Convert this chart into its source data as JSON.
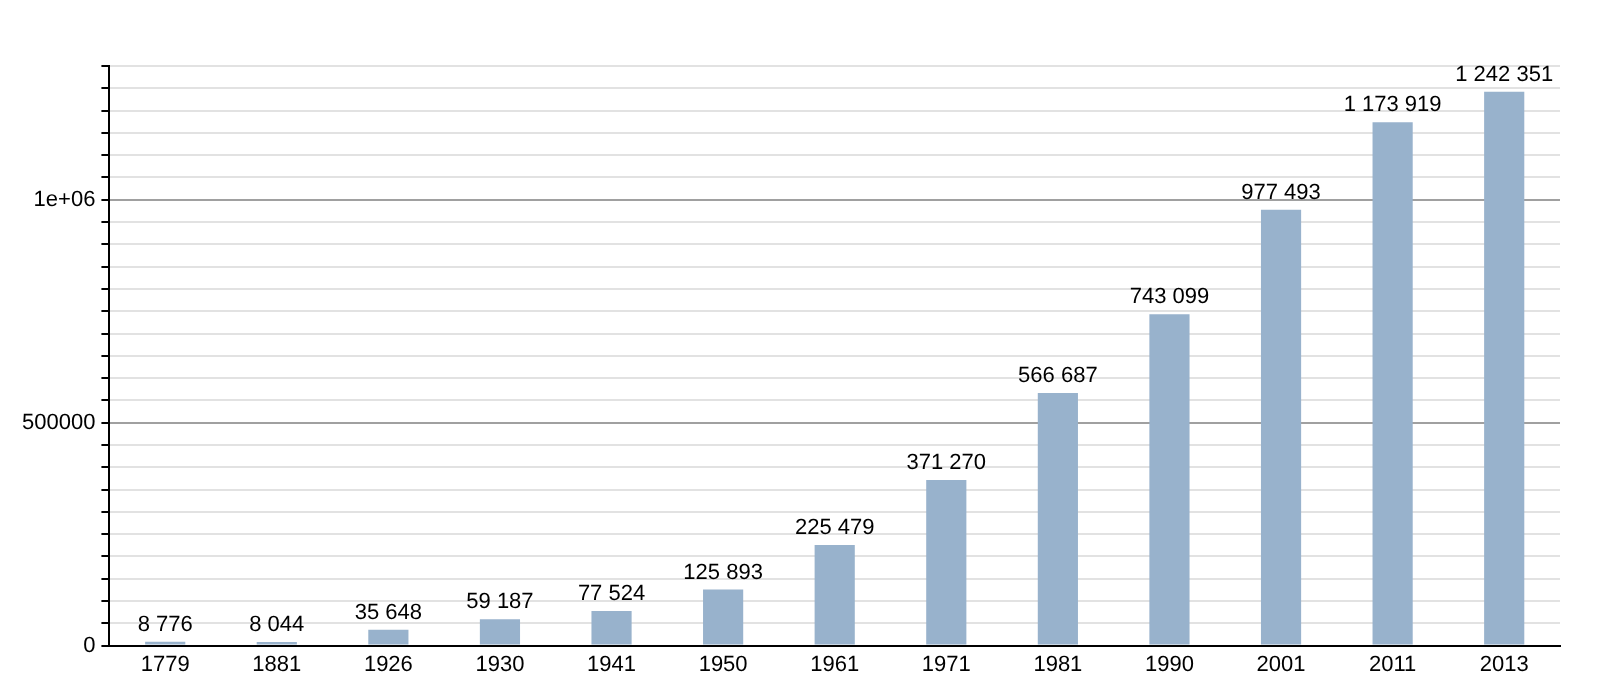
{
  "chart_data": {
    "type": "bar",
    "categories": [
      "1779",
      "1881",
      "1926",
      "1930",
      "1941",
      "1950",
      "1961",
      "1971",
      "1981",
      "1990",
      "2001",
      "2011",
      "2013"
    ],
    "values": [
      8776,
      8044,
      35648,
      59187,
      77524,
      125893,
      225479,
      371270,
      566687,
      743099,
      977493,
      1173919,
      1242351
    ],
    "value_labels": [
      "8 776",
      "8 044",
      "35 648",
      "59 187",
      "77 524",
      "125 893",
      "225 479",
      "371 270",
      "566 687",
      "743 099",
      "977 493",
      "1 173 919",
      "1 242 351"
    ],
    "color": "#98b2cc",
    "ylim": [
      0,
      1300000
    ],
    "yticks": [
      0,
      {
        "value": 50000,
        "label": null
      },
      {
        "value": 100000,
        "label": null
      },
      {
        "value": 150000,
        "label": null
      },
      {
        "value": 200000,
        "label": null
      },
      {
        "value": 250000,
        "label": null
      },
      {
        "value": 300000,
        "label": null
      },
      {
        "value": 350000,
        "label": null
      },
      {
        "value": 400000,
        "label": null
      },
      {
        "value": 450000,
        "label": null
      },
      500000,
      {
        "value": 550000,
        "label": null
      },
      {
        "value": 600000,
        "label": null
      },
      {
        "value": 650000,
        "label": null
      },
      {
        "value": 700000,
        "label": null
      },
      {
        "value": 750000,
        "label": null
      },
      {
        "value": 800000,
        "label": null
      },
      {
        "value": 850000,
        "label": null
      },
      {
        "value": 900000,
        "label": null
      },
      {
        "value": 950000,
        "label": null
      },
      {
        "value": 1000000,
        "label": "1e+06"
      },
      {
        "value": 1050000,
        "label": null
      },
      {
        "value": 1100000,
        "label": null
      },
      {
        "value": 1150000,
        "label": null
      },
      {
        "value": 1200000,
        "label": null
      },
      {
        "value": 1250000,
        "label": null
      },
      {
        "value": 1300000,
        "label": null
      }
    ],
    "grid": true
  }
}
